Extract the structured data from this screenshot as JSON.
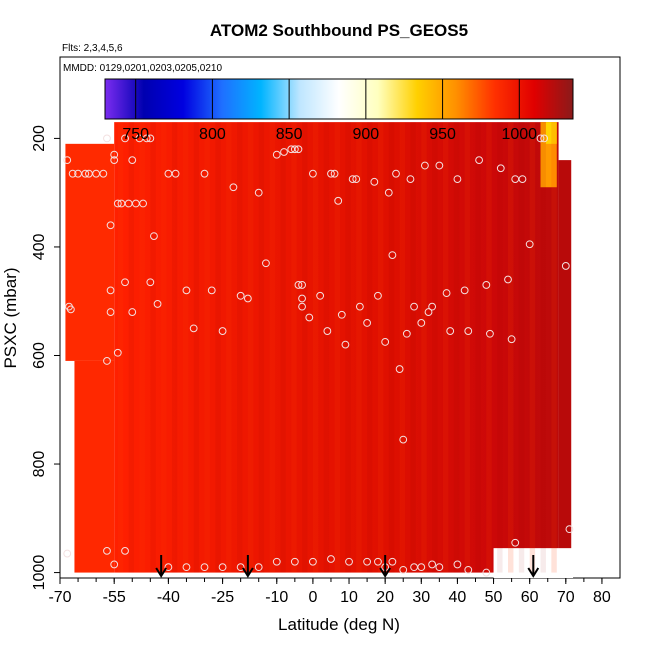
{
  "chart_data": {
    "type": "heatmap",
    "title": "ATOM2 Southbound PS_GEOS5",
    "flights_note": "Flts: 2,3,4,5,6",
    "dates_note": "MMDD: 0129,0201,0203,0205,0210",
    "xlabel": "Latitude (deg N)",
    "ylabel": "PSXC (mbar)",
    "xlim": [
      -70,
      85
    ],
    "ylim": [
      1010,
      50
    ],
    "x_ticks": [
      -70,
      -55,
      -40,
      -25,
      -10,
      0,
      10,
      20,
      30,
      40,
      50,
      60,
      70,
      80
    ],
    "y_ticks": [
      200,
      400,
      600,
      800,
      1000
    ],
    "colorbar": {
      "range": [
        730,
        1035
      ],
      "ticks": [
        750,
        800,
        850,
        900,
        950,
        1000
      ],
      "colors": [
        "#7b2cf0",
        "#0000b0",
        "#0000e0",
        "#1f6fff",
        "#00b4ff",
        "#bfe6ff",
        "#ffffff",
        "#ffffbf",
        "#ffd000",
        "#ff9000",
        "#ff3000",
        "#e00000",
        "#8b1a1a"
      ]
    },
    "field": {
      "x_range": [
        -68,
        72
      ],
      "p_range": [
        170,
        1000
      ],
      "base_value": 1005
    },
    "arrows_x": [
      -42,
      -18,
      20,
      61
    ],
    "markers": [
      [
        -68,
        240
      ],
      [
        -67.5,
        510
      ],
      [
        -67,
        515
      ],
      [
        -66.5,
        265
      ],
      [
        -65,
        265
      ],
      [
        -63,
        265
      ],
      [
        -62,
        265
      ],
      [
        -60,
        265
      ],
      [
        -58,
        265
      ],
      [
        -57,
        200
      ],
      [
        -55,
        230
      ],
      [
        -55,
        240
      ],
      [
        -54,
        320
      ],
      [
        -53,
        320
      ],
      [
        -51,
        320
      ],
      [
        -49,
        320
      ],
      [
        -47,
        320
      ],
      [
        -52,
        200
      ],
      [
        -50,
        240
      ],
      [
        -48,
        200
      ],
      [
        -46,
        200
      ],
      [
        -45,
        200
      ],
      [
        -56,
        360
      ],
      [
        -44,
        380
      ],
      [
        -43,
        505
      ],
      [
        -45,
        465
      ],
      [
        -52,
        465
      ],
      [
        -50,
        520
      ],
      [
        -56,
        480
      ],
      [
        -56,
        520
      ],
      [
        -54,
        595
      ],
      [
        -57,
        610
      ],
      [
        -40,
        265
      ],
      [
        -38,
        265
      ],
      [
        -35,
        480
      ],
      [
        -33,
        550
      ],
      [
        -30,
        265
      ],
      [
        -28,
        480
      ],
      [
        -25,
        555
      ],
      [
        -22,
        290
      ],
      [
        -20,
        490
      ],
      [
        -18,
        495
      ],
      [
        -15,
        300
      ],
      [
        -13,
        430
      ],
      [
        -10,
        230
      ],
      [
        -8,
        225
      ],
      [
        -6,
        220
      ],
      [
        -5,
        220
      ],
      [
        -4,
        220
      ],
      [
        -4,
        470
      ],
      [
        -3,
        470
      ],
      [
        -3,
        495
      ],
      [
        -3,
        510
      ],
      [
        -1,
        530
      ],
      [
        0,
        265
      ],
      [
        2,
        490
      ],
      [
        4,
        555
      ],
      [
        5,
        265
      ],
      [
        6,
        265
      ],
      [
        7,
        315
      ],
      [
        8,
        525
      ],
      [
        9,
        580
      ],
      [
        11,
        275
      ],
      [
        12,
        275
      ],
      [
        13,
        510
      ],
      [
        15,
        540
      ],
      [
        17,
        280
      ],
      [
        18,
        490
      ],
      [
        20,
        575
      ],
      [
        21,
        300
      ],
      [
        22,
        415
      ],
      [
        23,
        265
      ],
      [
        24,
        625
      ],
      [
        25,
        755
      ],
      [
        26,
        560
      ],
      [
        27,
        275
      ],
      [
        28,
        510
      ],
      [
        30,
        540
      ],
      [
        31,
        250
      ],
      [
        32,
        520
      ],
      [
        33,
        510
      ],
      [
        35,
        250
      ],
      [
        37,
        485
      ],
      [
        38,
        555
      ],
      [
        40,
        275
      ],
      [
        42,
        480
      ],
      [
        43,
        555
      ],
      [
        46,
        240
      ],
      [
        48,
        470
      ],
      [
        49,
        560
      ],
      [
        52,
        255
      ],
      [
        54,
        460
      ],
      [
        55,
        570
      ],
      [
        56,
        275
      ],
      [
        58,
        275
      ],
      [
        60,
        395
      ],
      [
        63,
        200
      ],
      [
        64,
        200
      ],
      [
        70,
        435
      ],
      [
        -68,
        965
      ],
      [
        -57,
        960
      ],
      [
        -55,
        985
      ],
      [
        -52,
        960
      ],
      [
        -40,
        990
      ],
      [
        -35,
        990
      ],
      [
        -30,
        990
      ],
      [
        -25,
        990
      ],
      [
        -20,
        990
      ],
      [
        -15,
        990
      ],
      [
        -10,
        980
      ],
      [
        -5,
        980
      ],
      [
        0,
        980
      ],
      [
        5,
        975
      ],
      [
        10,
        980
      ],
      [
        15,
        980
      ],
      [
        18,
        980
      ],
      [
        20,
        990
      ],
      [
        22,
        980
      ],
      [
        25,
        995
      ],
      [
        28,
        990
      ],
      [
        30,
        990
      ],
      [
        33,
        985
      ],
      [
        35,
        990
      ],
      [
        40,
        985
      ],
      [
        43,
        995
      ],
      [
        48,
        1000
      ],
      [
        56,
        945
      ],
      [
        71,
        920
      ]
    ]
  }
}
